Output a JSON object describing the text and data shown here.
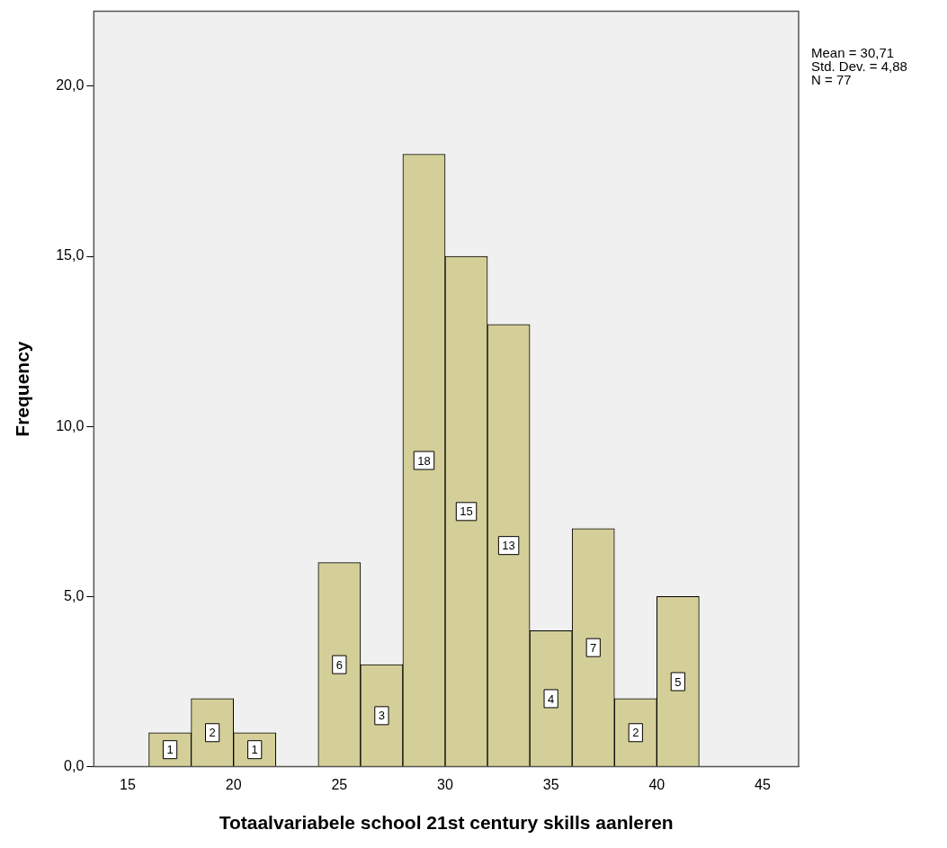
{
  "chart_data": {
    "type": "histogram",
    "xlabel": "Totaalvariabele school 21st century skills aanleren",
    "ylabel": "Frequency",
    "bins": [
      16,
      18,
      20,
      22,
      24,
      26,
      28,
      30,
      32,
      34,
      36,
      38,
      40,
      42
    ],
    "values": [
      1,
      2,
      1,
      0,
      6,
      3,
      18,
      15,
      13,
      4,
      7,
      2,
      5
    ],
    "value_labels": [
      "1",
      "2",
      "1",
      null,
      "6",
      "3",
      "18",
      "15",
      "13",
      "4",
      "7",
      "2",
      "5"
    ],
    "color": "#d4cf98",
    "xlim": [
      13.4,
      46.7
    ],
    "xticks": [
      15,
      20,
      25,
      30,
      35,
      40,
      45
    ],
    "ylim": [
      0,
      22.2
    ],
    "yticks": [
      {
        "value": 0,
        "label": "0,0"
      },
      {
        "value": 5,
        "label": "5,0"
      },
      {
        "value": 10,
        "label": "10,0"
      },
      {
        "value": 15,
        "label": "15,0"
      },
      {
        "value": 20,
        "label": "20,0"
      }
    ],
    "grid": false,
    "legend": false,
    "annotations": [
      "Mean = 30,71",
      "Std. Dev. = 4,88",
      "N = 77"
    ]
  }
}
